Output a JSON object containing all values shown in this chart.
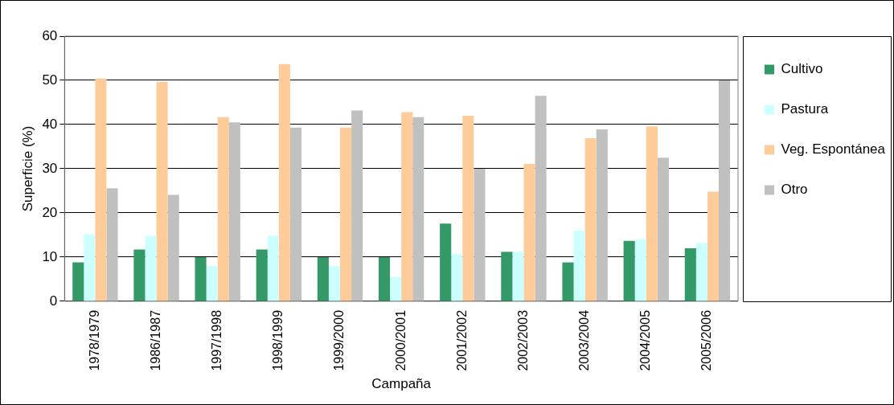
{
  "chart_data": {
    "type": "bar",
    "xlabel": "Campaña",
    "ylabel": "Superficie (%)",
    "categories": [
      "1978/1979",
      "1986/1987",
      "1997/1998",
      "1998/1999",
      "1999/2000",
      "2000/2001",
      "2001/2002",
      "2002/2003",
      "2003/2004",
      "2004/2005",
      "2005/2006"
    ],
    "series": [
      {
        "name": "Cultivo",
        "color": "#339966",
        "values": [
          8.8,
          11.7,
          10.0,
          11.7,
          10.0,
          10.0,
          17.6,
          11.2,
          8.8,
          13.7,
          12.0
        ]
      },
      {
        "name": "Pastura",
        "color": "#ccffff",
        "values": [
          15.2,
          14.8,
          8.0,
          14.8,
          8.0,
          5.5,
          10.7,
          11.2,
          16.0,
          14.0,
          13.2
        ]
      },
      {
        "name": "Veg. Espontánea",
        "color": "#ffcc99",
        "values": [
          50.4,
          49.7,
          41.7,
          53.7,
          39.3,
          42.8,
          42.0,
          31.1,
          36.9,
          39.6,
          24.8
        ]
      },
      {
        "name": "Otro",
        "color": "#c0c0c0",
        "values": [
          25.6,
          24.1,
          40.5,
          39.3,
          43.2,
          41.7,
          30.0,
          46.5,
          38.9,
          32.5,
          50.0
        ]
      }
    ],
    "ylim": [
      0,
      60
    ],
    "yticks": [
      0,
      10,
      20,
      30,
      40,
      50,
      60
    ],
    "grid": "y",
    "legend": "right"
  }
}
